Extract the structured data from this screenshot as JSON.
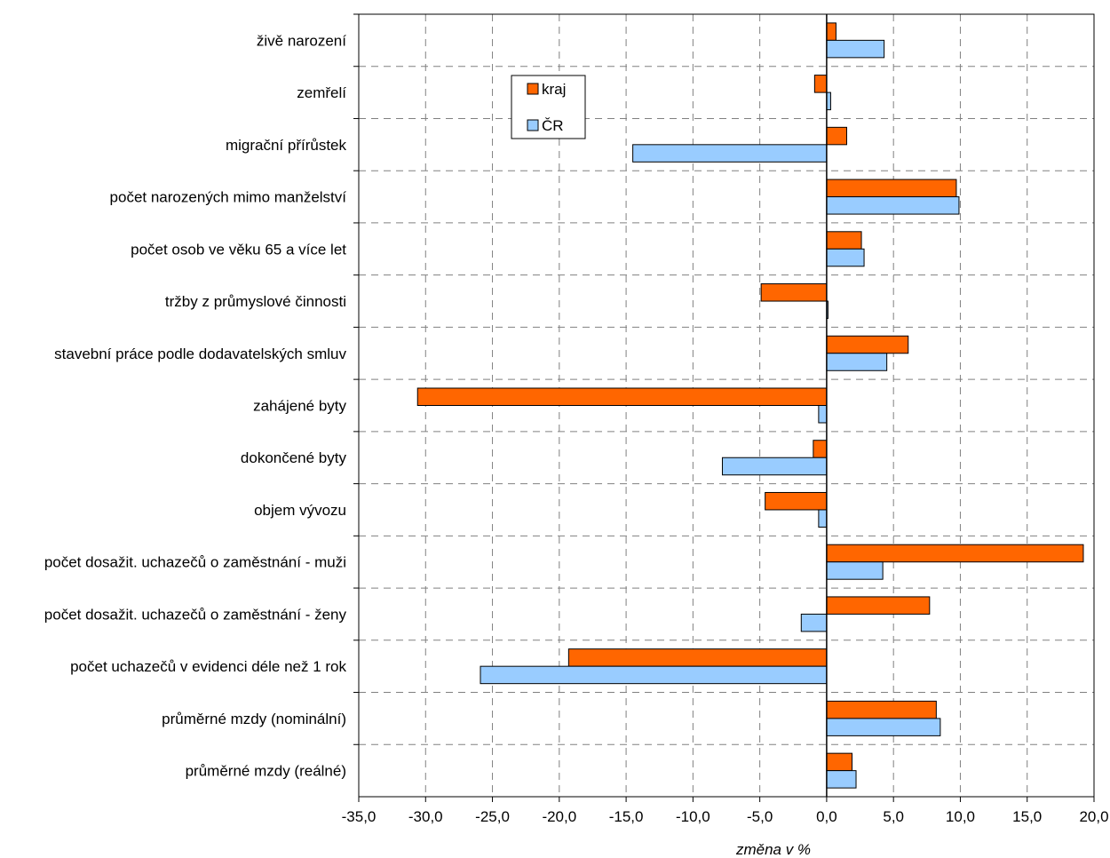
{
  "chart_data": {
    "type": "bar",
    "orientation": "horizontal",
    "categories": [
      "živě narození",
      "zemřelí",
      "migrační přírůstek",
      "počet narozených mimo manželství",
      "počet osob ve věku 65 a více let",
      "tržby z průmyslové činnosti",
      "stavební práce podle dodavatelských smluv",
      "zahájené byty",
      "dokončené byty",
      "objem vývozu",
      "počet dosažit. uchazečů o zaměstnání - muži",
      "počet dosažit. uchazečů o zaměstnání - ženy",
      "počet uchazečů v evidenci déle než 1 rok",
      "průměrné mzdy (nominální)",
      "průměrné mzdy (reálné)"
    ],
    "series": [
      {
        "name": "kraj",
        "color": "#ff6600",
        "values": [
          0.7,
          -0.9,
          1.5,
          9.7,
          2.6,
          -4.9,
          6.1,
          -30.6,
          -1.0,
          -4.6,
          19.2,
          7.7,
          -19.3,
          8.2,
          1.9
        ]
      },
      {
        "name": "ČR",
        "color": "#99ccff",
        "values": [
          4.3,
          0.3,
          -14.5,
          9.9,
          2.8,
          0.1,
          4.5,
          -0.6,
          -7.8,
          -0.6,
          4.2,
          -1.9,
          -25.9,
          8.5,
          2.2
        ]
      }
    ],
    "xlim": [
      -35,
      20
    ],
    "ticks": [
      "-35,0",
      "-30,0",
      "-25,0",
      "-20,0",
      "-15,0",
      "-10,0",
      "-5,0",
      "0,0",
      "5,0",
      "10,0",
      "15,0",
      "20,0"
    ],
    "tick_values": [
      -35,
      -30,
      -25,
      -20,
      -15,
      -10,
      -5,
      0,
      5,
      10,
      15,
      20
    ],
    "xlabel": "změna v %",
    "grid": true,
    "legend_position": "top-left"
  }
}
